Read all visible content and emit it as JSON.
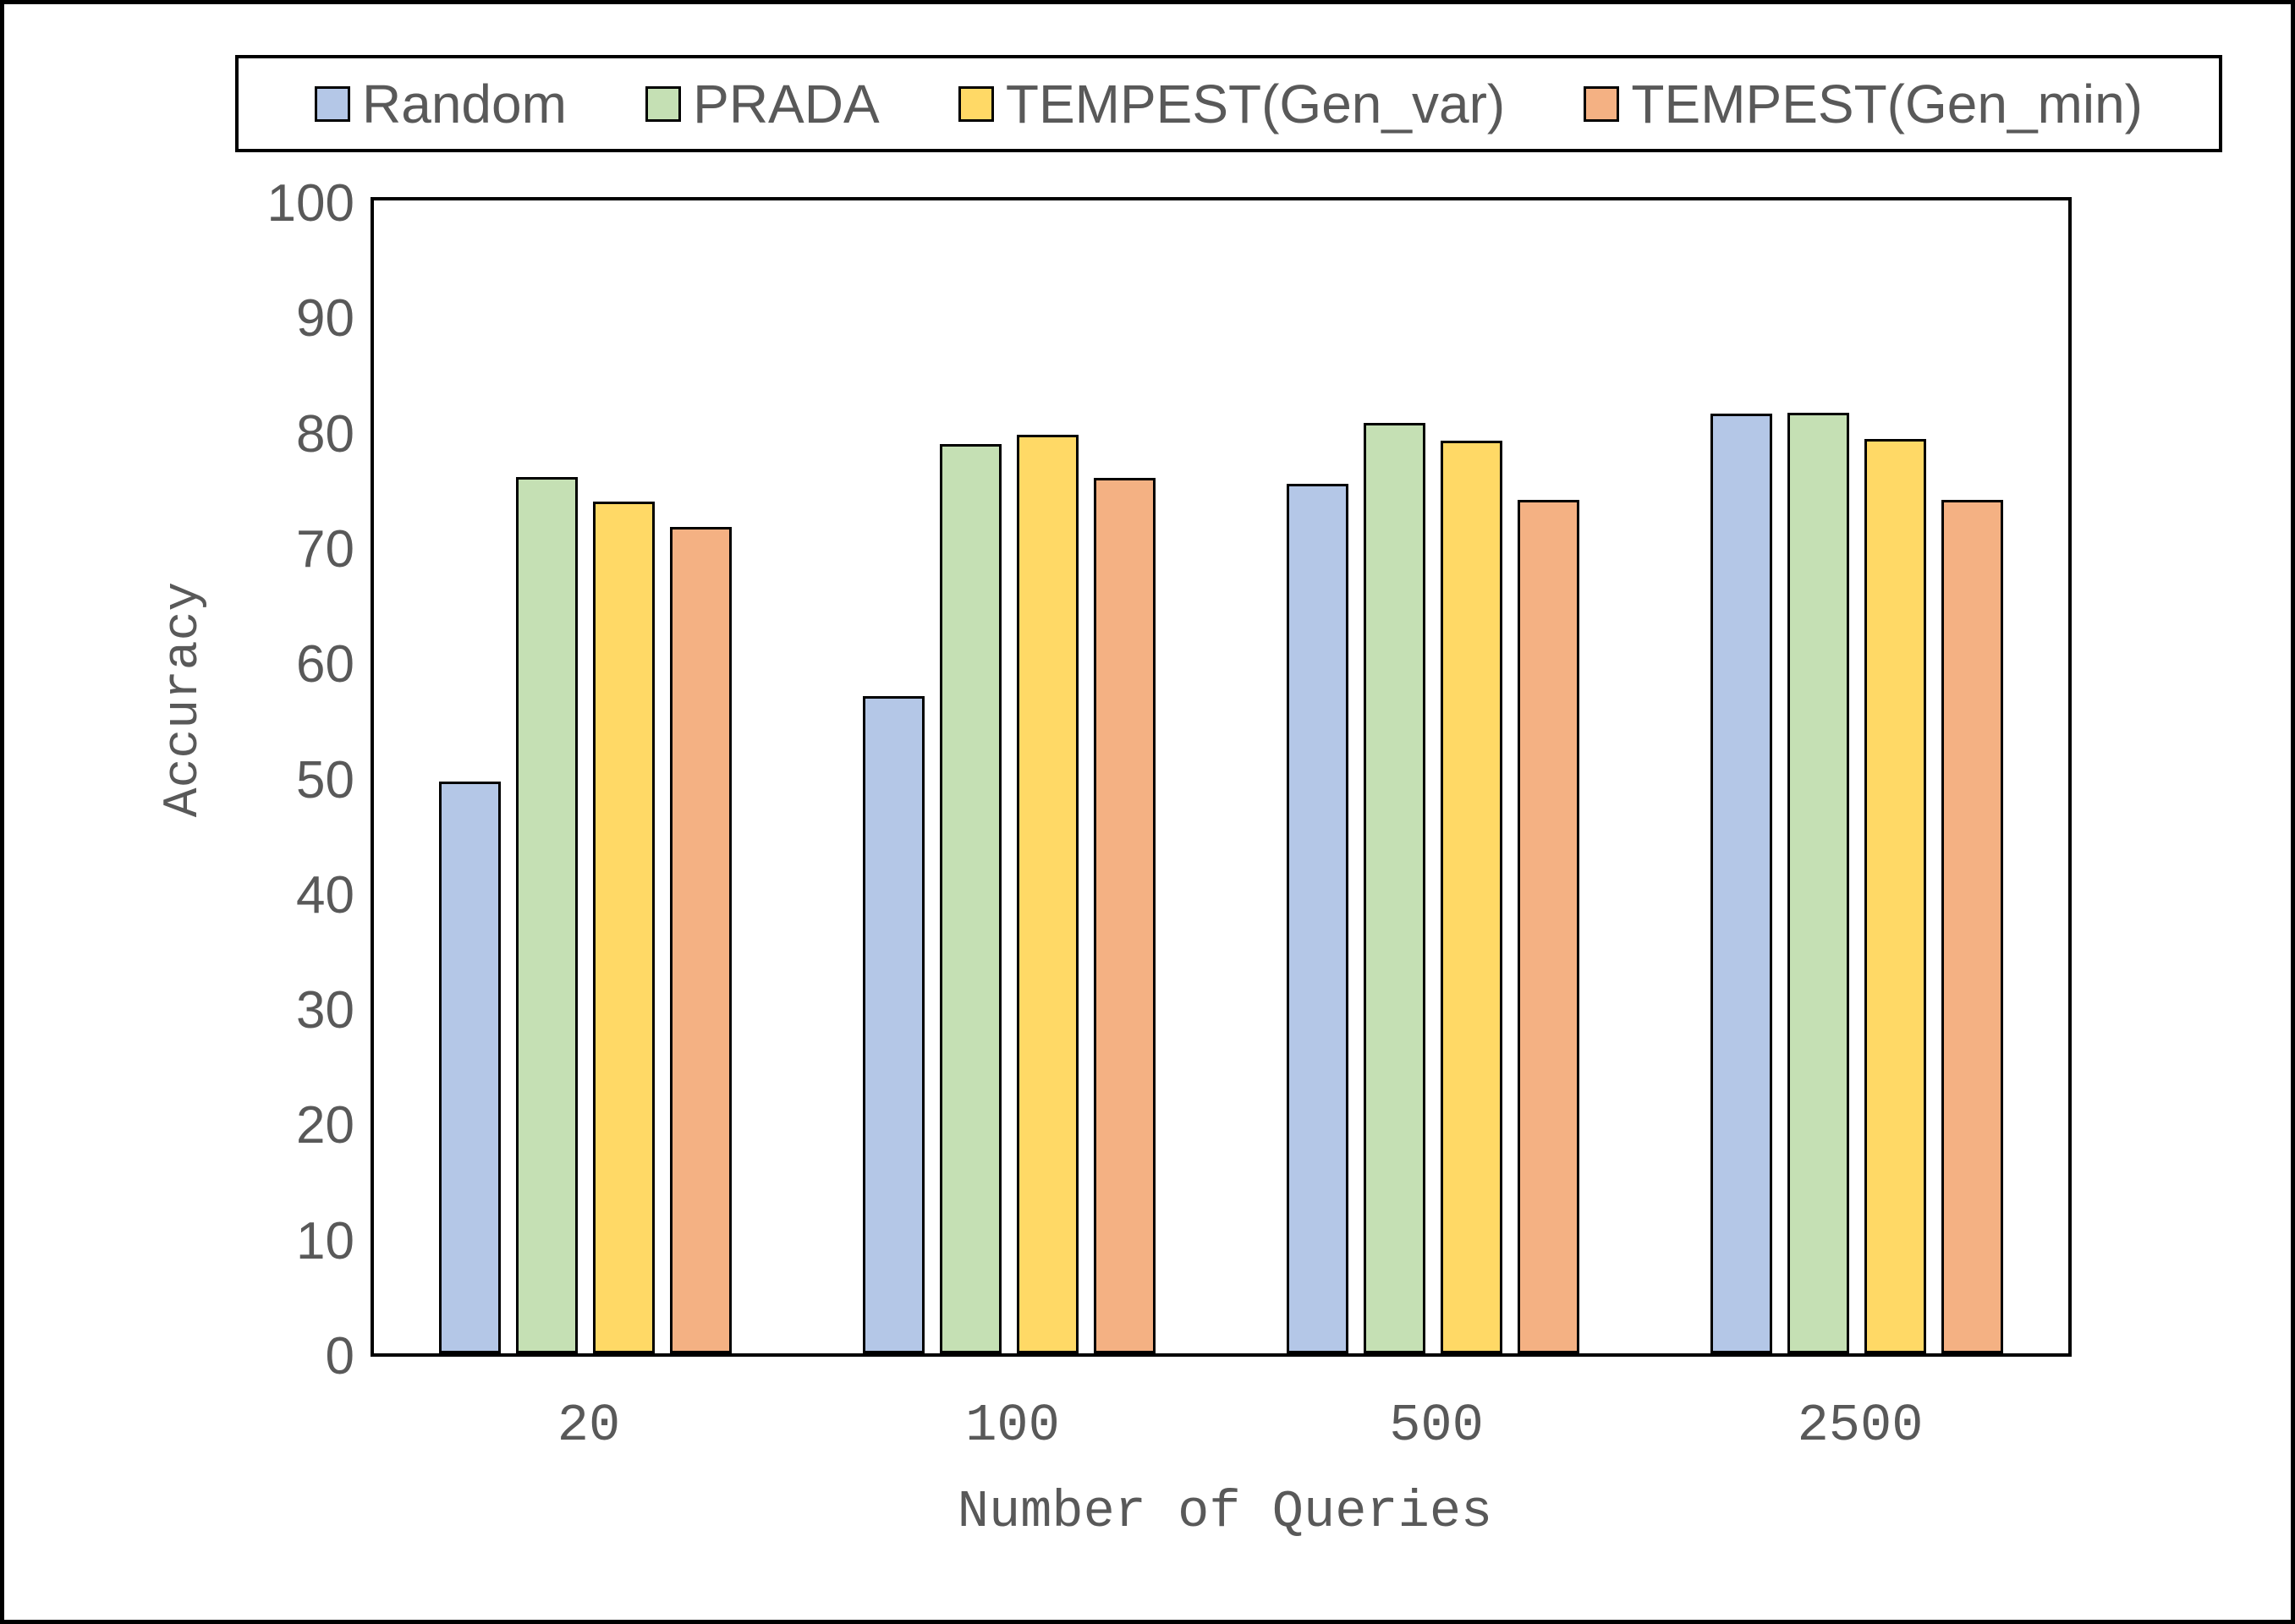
{
  "figure": {
    "background": "#ffffff",
    "frame_color": "#000000",
    "text_color": "#595959",
    "bar_edge_color": "#000000"
  },
  "legend": {
    "position": "top",
    "items": [
      {
        "label": "Random",
        "color": "#b4c7e7"
      },
      {
        "label": "PRADA",
        "color": "#c5e0b4"
      },
      {
        "label": "TEMPEST(Gen_var)",
        "color": "#ffd966"
      },
      {
        "label": "TEMPEST(Gen_min)",
        "color": "#f4b183"
      }
    ]
  },
  "chart_data": {
    "type": "bar",
    "title": "",
    "xlabel": "Number of Queries",
    "ylabel": "Accuracy",
    "categories": [
      "20",
      "100",
      "500",
      "2500"
    ],
    "series": [
      {
        "name": "Random",
        "color": "#b4c7e7",
        "values": [
          49.6,
          57.0,
          75.4,
          81.5
        ]
      },
      {
        "name": "PRADA",
        "color": "#c5e0b4",
        "values": [
          76.0,
          78.9,
          80.7,
          81.6
        ]
      },
      {
        "name": "TEMPEST(Gen_var)",
        "color": "#ffd966",
        "values": [
          73.9,
          79.7,
          79.2,
          79.3
        ]
      },
      {
        "name": "TEMPEST(Gen_min)",
        "color": "#f4b183",
        "values": [
          71.7,
          75.9,
          74.0,
          74.0
        ]
      }
    ],
    "ylim": [
      0,
      100
    ],
    "y_ticks": [
      0,
      10,
      20,
      30,
      40,
      50,
      60,
      70,
      80,
      90,
      100
    ],
    "grid": false,
    "legend_position": "top",
    "bar_edge_color": "#000000"
  }
}
